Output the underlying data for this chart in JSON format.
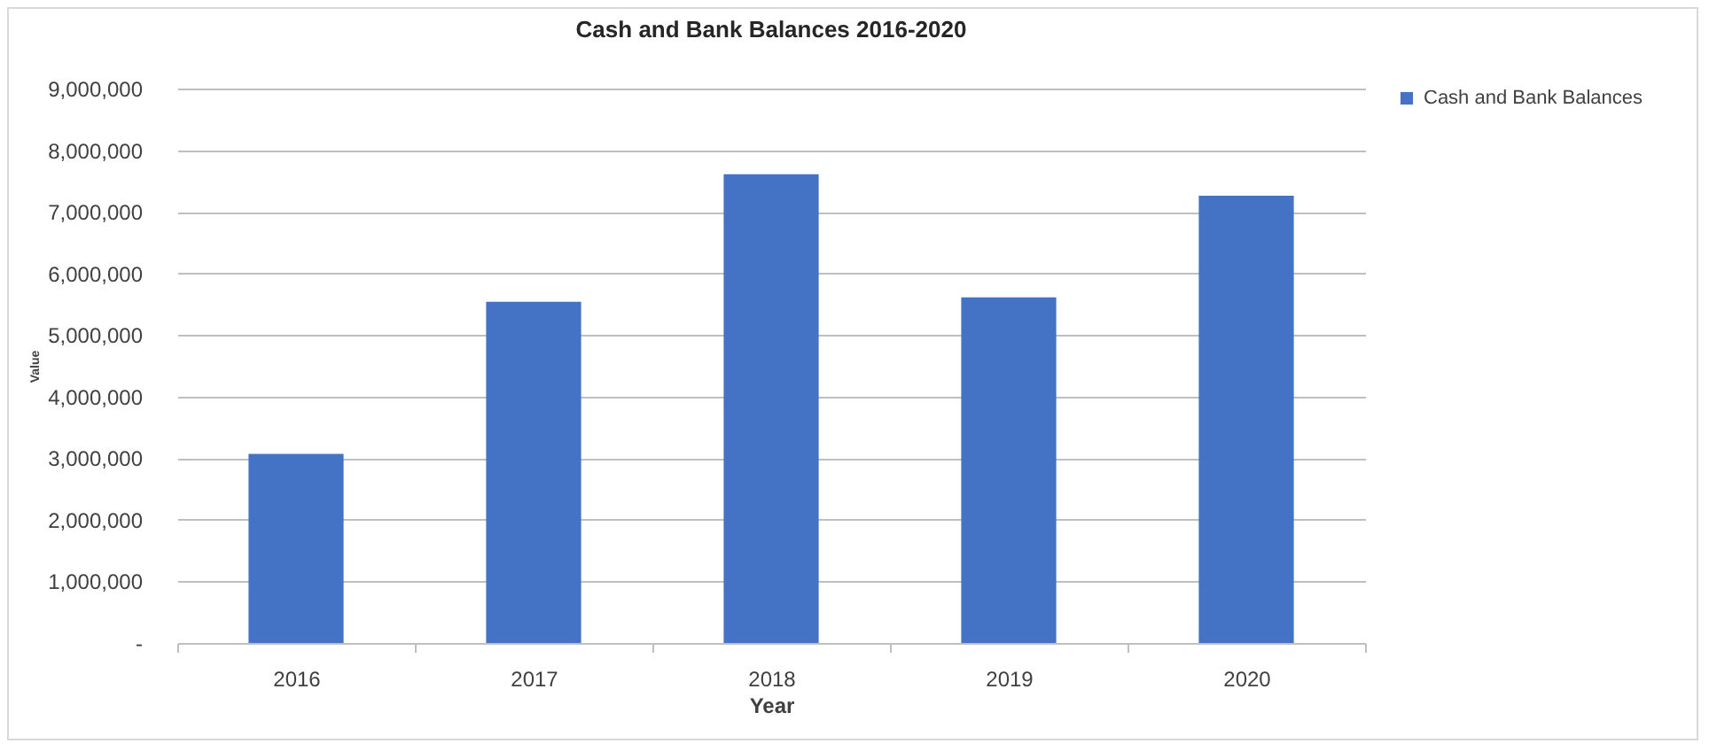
{
  "chart_data": {
    "type": "bar",
    "title": "Cash and Bank Balances 2016-2020",
    "xlabel": "Year",
    "ylabel": "Value",
    "categories": [
      "2016",
      "2017",
      "2018",
      "2019",
      "2020"
    ],
    "series": [
      {
        "name": "Cash and Bank Balances",
        "color": "#4472c4",
        "values": [
          3070000,
          5540000,
          7610000,
          5610000,
          7260000
        ]
      }
    ],
    "ylim": [
      0,
      9000000
    ],
    "yticks": [
      {
        "value": 0,
        "label": "-"
      },
      {
        "value": 1000000,
        "label": "1,000,000"
      },
      {
        "value": 2000000,
        "label": "2,000,000"
      },
      {
        "value": 3000000,
        "label": "3,000,000"
      },
      {
        "value": 4000000,
        "label": "4,000,000"
      },
      {
        "value": 5000000,
        "label": "5,000,000"
      },
      {
        "value": 6000000,
        "label": "6,000,000"
      },
      {
        "value": 7000000,
        "label": "7,000,000"
      },
      {
        "value": 8000000,
        "label": "8,000,000"
      },
      {
        "value": 9000000,
        "label": "9,000,000"
      }
    ],
    "grid": "y",
    "legend": "right"
  }
}
